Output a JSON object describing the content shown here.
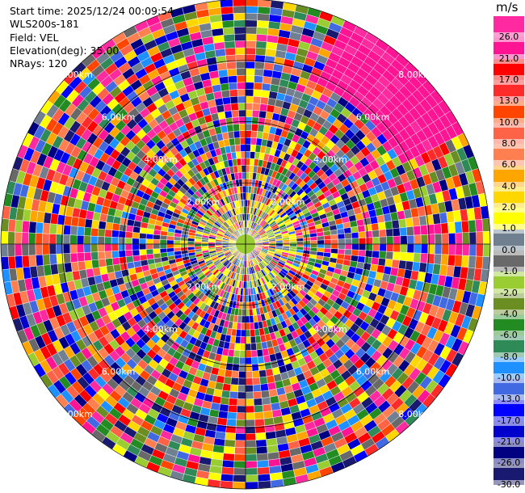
{
  "info": {
    "start_time": "Start time: 2025/12/24 00:09:54",
    "instrument": "WLS200s-181",
    "field": "Field: VEL",
    "elevation": "Elevation(deg): 35.00",
    "nrays": "NRays: 120"
  },
  "colorbar": {
    "unit": "m/s",
    "ticks": [
      "26.0",
      "21.0",
      "17.0",
      "13.0",
      "10.0",
      "8.0",
      "6.0",
      "4.0",
      "2.0",
      "1.0",
      "0.0",
      "-1.0",
      "-2.0",
      "-4.0",
      "-6.0",
      "-8.0",
      "-10.0",
      "-13.0",
      "-17.0",
      "-21.0",
      "-26.0",
      "-30.0"
    ],
    "colors": [
      "#ff2aa0",
      "#ff1493",
      "#ff0000",
      "#ff2a2a",
      "#ff4500",
      "#ff6347",
      "#ff7f50",
      "#ffa500",
      "#ffd700",
      "#ffff00",
      "#708090",
      "#696969",
      "#9acd32",
      "#6b8e23",
      "#228b22",
      "#2e8b57",
      "#1e90ff",
      "#4169e1",
      "#0000ff",
      "#0000cd",
      "#000080",
      "#191970"
    ]
  },
  "chart_data": {
    "type": "heatmap",
    "projection": "polar PPI",
    "field": "VEL",
    "units": "m/s",
    "elevation_deg": 35.0,
    "n_rays": 120,
    "ring_labels": [
      "2.00km",
      "4.00km",
      "6.00km",
      "8.00km"
    ],
    "color_range": [
      -30.0,
      26.0
    ],
    "note_sector": "high positive velocities (pink, ~21–26 m/s) in the outer northeast sector"
  }
}
